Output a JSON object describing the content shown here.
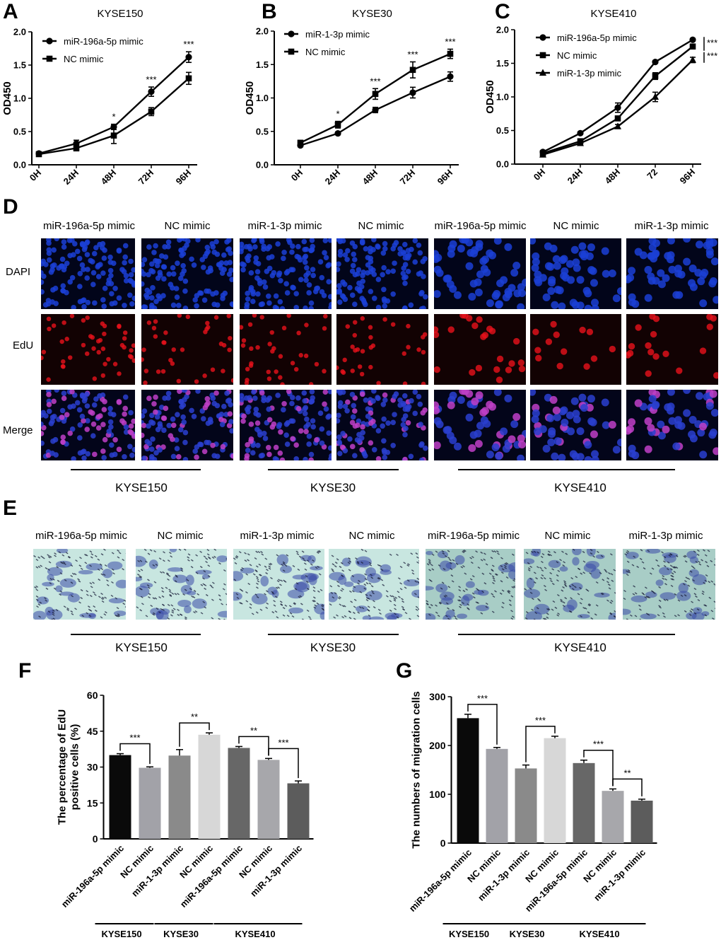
{
  "panels": {
    "A": "A",
    "B": "B",
    "C": "C",
    "D": "D",
    "E": "E",
    "F": "F",
    "G": "G"
  },
  "chart_data": [
    {
      "id": "A",
      "type": "line",
      "title": "KYSE150",
      "ylabel": "OD450",
      "xlabel": "",
      "categories": [
        "0H",
        "24H",
        "48H",
        "72H",
        "96H"
      ],
      "ylim": [
        0,
        2.0
      ],
      "yticks": [
        "0.0",
        "0.5",
        "1.0",
        "1.5",
        "2.0"
      ],
      "series": [
        {
          "name": "miR-196a-5p mimic",
          "marker": "circle",
          "values": [
            0.17,
            0.32,
            0.57,
            1.1,
            1.62
          ],
          "errors": [
            0.02,
            0.05,
            0.04,
            0.07,
            0.08
          ]
        },
        {
          "name": "NC mimic",
          "marker": "square",
          "values": [
            0.16,
            0.25,
            0.44,
            0.8,
            1.3
          ],
          "errors": [
            0.02,
            0.04,
            0.12,
            0.06,
            0.09
          ]
        }
      ],
      "annotations": [
        {
          "category": "48H",
          "text": "*"
        },
        {
          "category": "72H",
          "text": "***"
        },
        {
          "category": "96H",
          "text": "***"
        }
      ]
    },
    {
      "id": "B",
      "type": "line",
      "title": "KYSE30",
      "ylabel": "OD450",
      "xlabel": "",
      "categories": [
        "0H",
        "24H",
        "48H",
        "72H",
        "96H"
      ],
      "ylim": [
        0,
        2.0
      ],
      "yticks": [
        "0.0",
        "0.5",
        "1.0",
        "1.5",
        "2.0"
      ],
      "series": [
        {
          "name": "miR-1-3p mimic",
          "marker": "circle",
          "values": [
            0.29,
            0.47,
            0.82,
            1.08,
            1.32
          ],
          "errors": [
            0.02,
            0.02,
            0.04,
            0.08,
            0.07
          ]
        },
        {
          "name": "NC mimic",
          "marker": "square",
          "values": [
            0.33,
            0.6,
            1.06,
            1.42,
            1.66
          ],
          "errors": [
            0.03,
            0.05,
            0.08,
            0.12,
            0.07
          ]
        }
      ],
      "annotations": [
        {
          "category": "24H",
          "text": "*"
        },
        {
          "category": "48H",
          "text": "***"
        },
        {
          "category": "72H",
          "text": "***"
        },
        {
          "category": "96H",
          "text": "***"
        }
      ]
    },
    {
      "id": "C",
      "type": "line",
      "title": "KYSE410",
      "ylabel": "OD450",
      "xlabel": "",
      "categories": [
        "0H",
        "24H",
        "48H",
        "72",
        "96H"
      ],
      "ylim": [
        0,
        2.0
      ],
      "yticks": [
        "0.0",
        "0.5",
        "1.0",
        "1.5",
        "2.0"
      ],
      "series": [
        {
          "name": "miR-196a-5p mimic",
          "marker": "circle",
          "values": [
            0.18,
            0.46,
            0.84,
            1.52,
            1.85
          ],
          "errors": [
            0.02,
            0.02,
            0.07,
            0.02,
            0.02
          ]
        },
        {
          "name": "NC mimic",
          "marker": "square",
          "values": [
            0.16,
            0.34,
            0.68,
            1.31,
            1.75
          ],
          "errors": [
            0.02,
            0.03,
            0.03,
            0.05,
            0.02
          ]
        },
        {
          "name": "miR-1-3p mimic",
          "marker": "triangle",
          "values": [
            0.14,
            0.31,
            0.56,
            1.0,
            1.55
          ],
          "errors": [
            0.02,
            0.03,
            0.03,
            0.07,
            0.04
          ]
        }
      ],
      "annotations": [
        {
          "text": "***"
        },
        {
          "text": "***"
        }
      ]
    },
    {
      "id": "F",
      "type": "bar",
      "ylabel": "The percentage of EdU positive cells (%)",
      "ylabel_lines": [
        "The percentage of EdU",
        "positive cells (%)"
      ],
      "categories": [
        "miR-196a-5p mimic",
        "NC mimic",
        "miR-1-3p mimic",
        "NC mimic",
        "miR-196a-5p mimic",
        "NC mimic",
        "miR-1-3p mimic"
      ],
      "values": [
        35,
        29.7,
        34.8,
        43.5,
        38,
        33,
        23.2
      ],
      "errors": [
        0.6,
        0.4,
        2.5,
        0.8,
        0.6,
        0.6,
        1.0
      ],
      "colors": [
        "#0a0a0a",
        "#a2a2a8",
        "#8a8a8a",
        "#d7d7d7",
        "#676767",
        "#a7a7ab",
        "#5c5c5c"
      ],
      "ylim": [
        0,
        60
      ],
      "yticks": [
        "0",
        "15",
        "30",
        "45",
        "60"
      ],
      "brackets": [
        {
          "from": 0,
          "to": 1,
          "text": "***"
        },
        {
          "from": 2,
          "to": 3,
          "text": "**"
        },
        {
          "from": 4,
          "to": 5,
          "text": "**"
        },
        {
          "from": 5,
          "to": 6,
          "text": "***"
        }
      ],
      "groups": [
        {
          "label": "KYSE150",
          "from": 0,
          "to": 1
        },
        {
          "label": "KYSE30",
          "from": 2,
          "to": 3
        },
        {
          "label": "KYSE410",
          "from": 4,
          "to": 6
        }
      ]
    },
    {
      "id": "G",
      "type": "bar",
      "ylabel": "The numbers of migration cells",
      "ylabel_lines": [
        "The numbers of migration cells"
      ],
      "categories": [
        "miR-196a-5p mimic",
        "NC mimic",
        "miR-1-3p mimic",
        "NC mimic",
        "miR-196a-5p mimic",
        "NC mimic",
        "miR-1-3p mimic"
      ],
      "values": [
        256,
        193,
        153,
        215,
        164,
        107,
        87
      ],
      "errors": [
        8,
        3,
        7,
        4,
        6,
        4,
        3
      ],
      "colors": [
        "#0a0a0a",
        "#a2a2a8",
        "#8a8a8a",
        "#d7d7d7",
        "#676767",
        "#a7a7ab",
        "#5c5c5c"
      ],
      "ylim": [
        0,
        300
      ],
      "yticks": [
        "0",
        "100",
        "200",
        "300"
      ],
      "brackets": [
        {
          "from": 0,
          "to": 1,
          "text": "***"
        },
        {
          "from": 2,
          "to": 3,
          "text": "***"
        },
        {
          "from": 4,
          "to": 5,
          "text": "***"
        },
        {
          "from": 5,
          "to": 6,
          "text": "**"
        }
      ],
      "groups": [
        {
          "label": "KYSE150",
          "from": 0,
          "to": 1
        },
        {
          "label": "KYSE30",
          "from": 2,
          "to": 3
        },
        {
          "label": "KYSE410",
          "from": 4,
          "to": 6
        }
      ]
    }
  ],
  "microscopy": {
    "D": {
      "columns": [
        "miR-196a-5p mimic",
        "NC mimic",
        "miR-1-3p mimic",
        "NC mimic",
        "miR-196a-5p mimic",
        "NC mimic",
        "miR-1-3p mimic"
      ],
      "rows": [
        "DAPI",
        "EdU",
        "Merge"
      ],
      "groups": [
        "KYSE150",
        "KYSE30",
        "KYSE410"
      ]
    },
    "E": {
      "columns": [
        "miR-196a-5p mimic",
        "NC mimic",
        "miR-1-3p mimic",
        "NC mimic",
        "miR-196a-5p mimic",
        "NC mimic",
        "miR-1-3p mimic"
      ],
      "groups": [
        "KYSE150",
        "KYSE30",
        "KYSE410"
      ]
    }
  },
  "colors": {
    "dapi_bg": "#02051a",
    "dapi_nuclei": "#1b3fd6",
    "edu_bg": "#120203",
    "edu_nuclei": "#e8121b",
    "merge_bg": "#03051a",
    "merge_nuclei": "#2a3fd0",
    "merge_overlap": "#c040c8",
    "transwell_bg": "#c8e6e0",
    "transwell_cells": "#3b4aa8",
    "transwell_pores": "#1a1f3a"
  }
}
